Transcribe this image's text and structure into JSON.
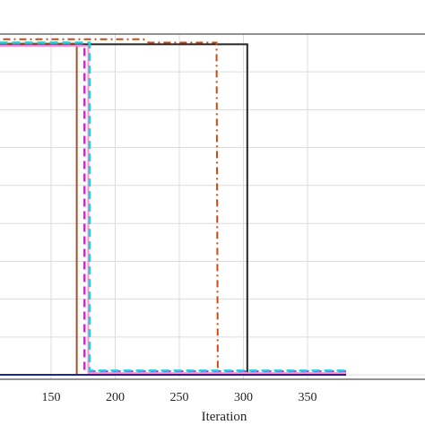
{
  "chart_data": {
    "type": "line",
    "title": "",
    "xlabel": "Iteration",
    "ylabel": "",
    "xlim": [
      100,
      380
    ],
    "ylim": [
      0,
      1
    ],
    "x_ticks": [
      150,
      200,
      250,
      300,
      350
    ],
    "y_gridlines": [
      0,
      0.111,
      0.222,
      0.333,
      0.444,
      0.556,
      0.667,
      0.778,
      0.889,
      1.0
    ],
    "grid": true,
    "legend": "none",
    "series": [
      {
        "color": "#262626",
        "style": "solid",
        "points": [
          [
            100,
            0.97
          ],
          [
            303,
            0.97
          ],
          [
            303,
            0.0
          ],
          [
            380,
            0.0
          ]
        ]
      },
      {
        "color": "#cc4b12",
        "style": "dashdot",
        "points": [
          [
            100,
            0.985
          ],
          [
            222,
            0.985
          ],
          [
            226,
            0.975
          ],
          [
            279,
            0.975
          ],
          [
            280,
            0.0
          ],
          [
            380,
            0.0
          ]
        ]
      },
      {
        "color": "#a0522d",
        "style": "solid",
        "points": [
          [
            100,
            0.972
          ],
          [
            170,
            0.972
          ],
          [
            170,
            0.0
          ],
          [
            380,
            0.0
          ]
        ]
      },
      {
        "color": "#e020e0",
        "style": "dashed",
        "points": [
          [
            100,
            0.968
          ],
          [
            176,
            0.968
          ],
          [
            176,
            0.01
          ],
          [
            380,
            0.01
          ]
        ]
      },
      {
        "color": "#ff8fd0",
        "style": "solid",
        "points": [
          [
            100,
            0.965
          ],
          [
            179,
            0.965
          ],
          [
            179,
            0.005
          ],
          [
            380,
            0.005
          ]
        ]
      },
      {
        "color": "#1ed0e0",
        "style": "dashed",
        "points": [
          [
            100,
            0.975
          ],
          [
            180,
            0.975
          ],
          [
            180,
            0.012
          ],
          [
            380,
            0.012
          ]
        ]
      },
      {
        "color": "#1a2a8c",
        "style": "solid",
        "points": [
          [
            100,
            0.0
          ],
          [
            380,
            0.0
          ]
        ]
      }
    ]
  }
}
